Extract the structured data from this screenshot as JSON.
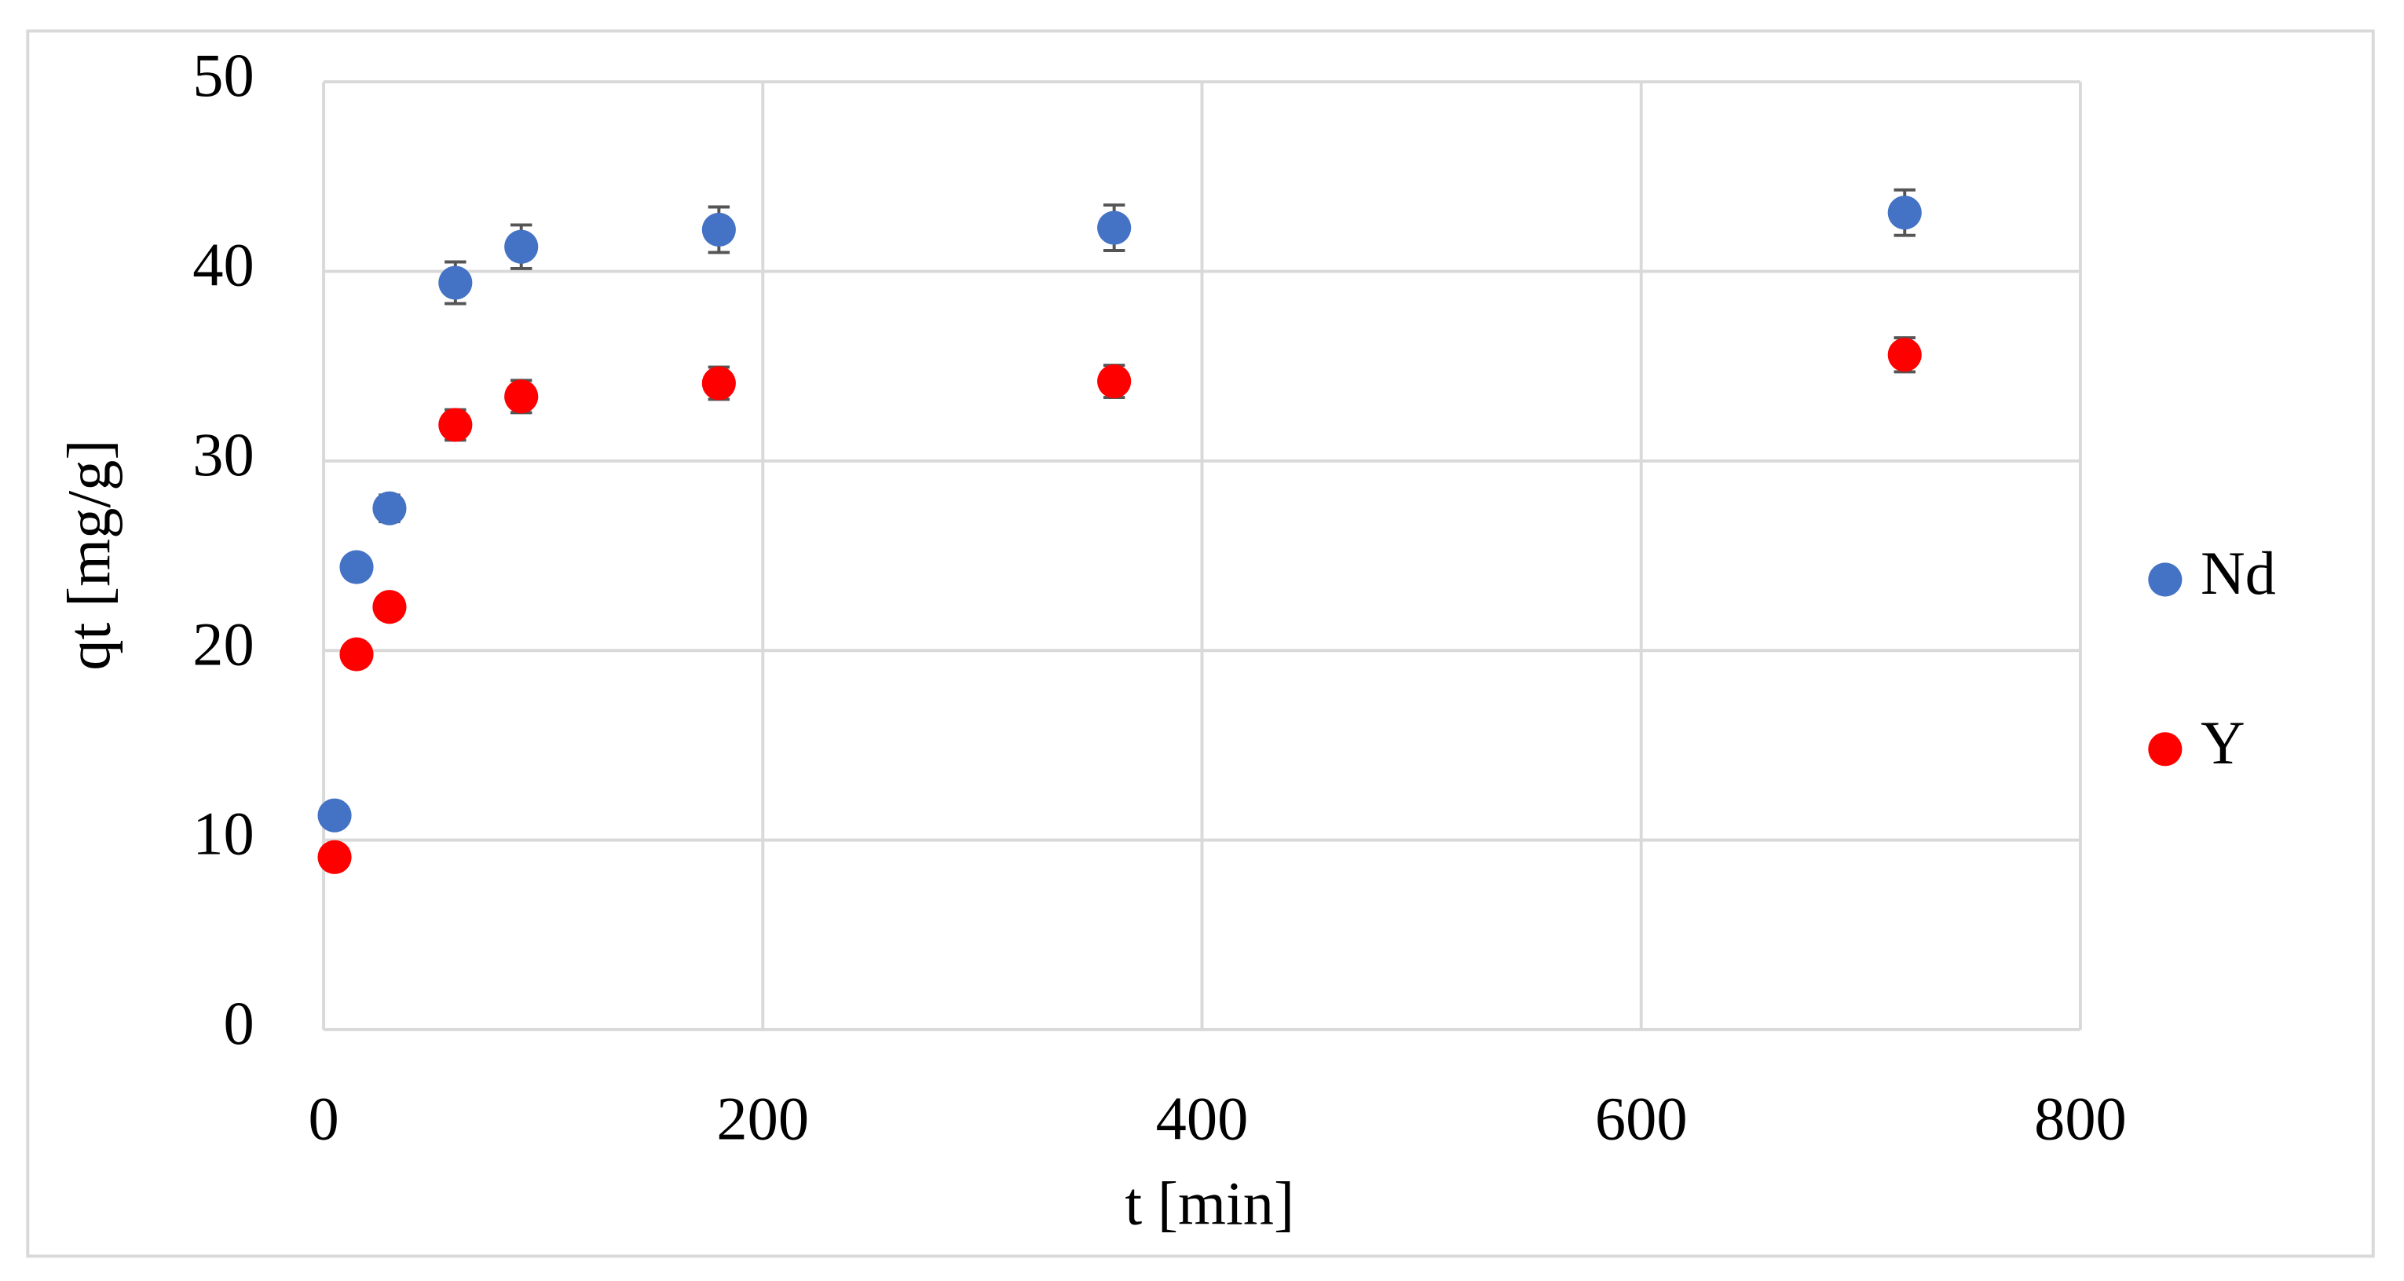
{
  "chart_data": {
    "type": "scatter",
    "x_label": "t [min]",
    "y_label": "qt [mg/g]",
    "x": [
      5,
      15,
      30,
      60,
      90,
      180,
      360,
      720
    ],
    "series": [
      {
        "name": "Nd",
        "color": "#4472c4",
        "values": [
          11.3,
          24.4,
          27.5,
          39.4,
          41.3,
          42.2,
          42.3,
          43.1
        ],
        "errors": [
          0.3,
          0.5,
          0.7,
          1.1,
          1.15,
          1.2,
          1.2,
          1.2
        ]
      },
      {
        "name": "Y",
        "color": "#ff0000",
        "values": [
          9.1,
          19.8,
          22.3,
          31.9,
          33.4,
          34.1,
          34.2,
          35.6
        ],
        "errors": [
          0.2,
          0.4,
          0.6,
          0.8,
          0.85,
          0.85,
          0.85,
          0.9
        ]
      }
    ],
    "xlim": [
      0,
      800
    ],
    "xticks": [
      0,
      200,
      400,
      600,
      800
    ],
    "ylim": [
      0,
      50
    ],
    "yticks": [
      0,
      10,
      20,
      30,
      40,
      50
    ],
    "grid": true,
    "legend": "right"
  }
}
